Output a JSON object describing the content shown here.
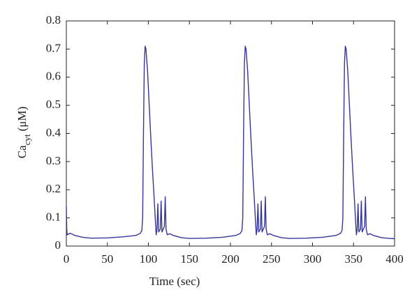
{
  "chart_data": {
    "type": "line",
    "xlabel": "Time (sec)",
    "ylabel": [
      "Ca",
      "cyt",
      " (μM)"
    ],
    "xlim": [
      0,
      400
    ],
    "ylim": [
      0,
      0.8
    ],
    "xticks": [
      0,
      50,
      100,
      150,
      200,
      250,
      300,
      350,
      400
    ],
    "yticks": [
      0,
      0.1,
      0.2,
      0.3,
      0.4,
      0.5,
      0.6,
      0.7,
      0.8
    ],
    "grid": false,
    "x": [
      0,
      0.5,
      1,
      4,
      6,
      10,
      20,
      30,
      50,
      70,
      85,
      90,
      92,
      93,
      94,
      95,
      96,
      97,
      99,
      101,
      103,
      105,
      107,
      108.5,
      109.5,
      110.5,
      111.5,
      112.5,
      114.5,
      115.5,
      116.5,
      119.5,
      120.5,
      121.5,
      123,
      126,
      130,
      140,
      150,
      170,
      190,
      207,
      212,
      214,
      215,
      216,
      217,
      218,
      219,
      221,
      223,
      225,
      227,
      229,
      230.5,
      231.5,
      232.5,
      233.5,
      234.5,
      236.5,
      237.5,
      238.5,
      241.5,
      242.5,
      243.5,
      245,
      248,
      252,
      262,
      272,
      292,
      312,
      329,
      334,
      336,
      337,
      338,
      339,
      340,
      341,
      343,
      345,
      347,
      349,
      351,
      352.5,
      353.5,
      354.5,
      355.5,
      356.5,
      358.5,
      359.5,
      360.5,
      363.5,
      364.5,
      365.5,
      367,
      370,
      374,
      384,
      394,
      400
    ],
    "series": [
      {
        "color": "#35359a",
        "values": [
          0.14,
          0.06,
          0.04,
          0.045,
          0.044,
          0.038,
          0.031,
          0.028,
          0.029,
          0.033,
          0.038,
          0.045,
          0.055,
          0.1,
          0.4,
          0.65,
          0.71,
          0.7,
          0.62,
          0.5,
          0.38,
          0.27,
          0.17,
          0.09,
          0.04,
          0.06,
          0.15,
          0.05,
          0.06,
          0.16,
          0.05,
          0.07,
          0.175,
          0.06,
          0.04,
          0.044,
          0.038,
          0.03,
          0.027,
          0.028,
          0.031,
          0.038,
          0.045,
          0.055,
          0.1,
          0.4,
          0.65,
          0.71,
          0.7,
          0.62,
          0.5,
          0.38,
          0.27,
          0.17,
          0.09,
          0.04,
          0.06,
          0.15,
          0.05,
          0.06,
          0.16,
          0.05,
          0.07,
          0.175,
          0.06,
          0.04,
          0.044,
          0.038,
          0.03,
          0.027,
          0.028,
          0.031,
          0.038,
          0.045,
          0.055,
          0.1,
          0.4,
          0.65,
          0.71,
          0.7,
          0.62,
          0.5,
          0.38,
          0.27,
          0.17,
          0.09,
          0.04,
          0.06,
          0.15,
          0.05,
          0.06,
          0.16,
          0.05,
          0.07,
          0.175,
          0.06,
          0.04,
          0.044,
          0.038,
          0.03,
          0.027,
          0.026
        ]
      }
    ]
  }
}
